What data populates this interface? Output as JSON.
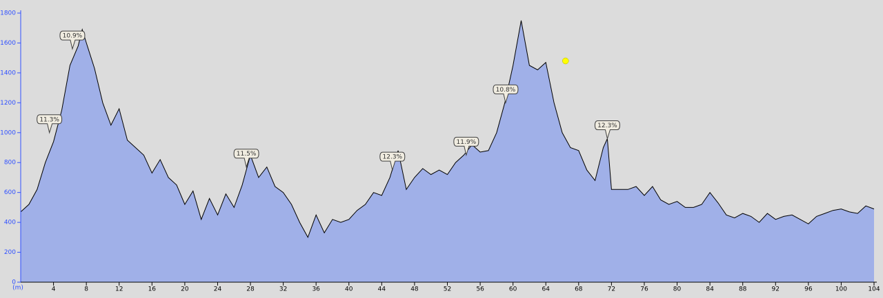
{
  "chart_data": {
    "type": "area",
    "x_label": "(m)",
    "x": [
      0,
      1,
      2,
      3,
      4,
      5,
      6,
      7,
      7.5,
      8,
      9,
      10,
      11,
      12,
      13,
      14,
      15,
      16,
      17,
      18,
      19,
      20,
      21,
      22,
      23,
      24,
      25,
      26,
      27,
      28,
      29,
      30,
      31,
      32,
      33,
      34,
      35,
      36,
      37,
      38,
      39,
      40,
      41,
      42,
      43,
      44,
      45,
      46,
      47,
      48,
      49,
      50,
      51,
      52,
      53,
      54,
      55,
      56,
      57,
      58,
      59,
      60,
      61,
      62,
      63,
      64,
      65,
      66,
      67,
      68,
      69,
      70,
      71,
      71.5,
      72,
      73,
      74,
      75,
      76,
      77,
      78,
      79,
      80,
      81,
      82,
      83,
      84,
      85,
      86,
      87,
      88,
      89,
      90,
      91,
      92,
      93,
      94,
      95,
      96,
      97,
      98,
      99,
      100,
      101,
      102,
      103,
      104
    ],
    "values": [
      470,
      520,
      620,
      800,
      940,
      1150,
      1450,
      1580,
      1690,
      1600,
      1430,
      1200,
      1050,
      1160,
      950,
      900,
      850,
      730,
      820,
      700,
      650,
      520,
      610,
      420,
      560,
      450,
      590,
      500,
      650,
      850,
      700,
      770,
      640,
      600,
      520,
      400,
      300,
      450,
      330,
      420,
      400,
      420,
      480,
      520,
      600,
      580,
      700,
      880,
      620,
      700,
      760,
      720,
      750,
      720,
      800,
      850,
      920,
      870,
      880,
      1000,
      1200,
      1450,
      1750,
      1450,
      1420,
      1470,
      1200,
      1000,
      900,
      880,
      750,
      680,
      900,
      960,
      620,
      620,
      620,
      640,
      580,
      640,
      550,
      520,
      540,
      500,
      500,
      520,
      600,
      530,
      450,
      430,
      460,
      440,
      400,
      460,
      420,
      440,
      450,
      420,
      390,
      440,
      460,
      480,
      490,
      470,
      460,
      510,
      490
    ],
    "color": "#a0b0e8",
    "line_color": "#000000",
    "xlim": [
      0,
      104
    ],
    "xticks": [
      4,
      8,
      12,
      16,
      20,
      24,
      28,
      32,
      36,
      40,
      44,
      48,
      52,
      56,
      60,
      64,
      68,
      72,
      76,
      80,
      84,
      88,
      92,
      96,
      100,
      104
    ],
    "ylim": [
      0,
      1800
    ],
    "yticks": [
      0,
      200,
      400,
      600,
      800,
      1000,
      1200,
      1400,
      1600,
      1800
    ],
    "annotations": [
      {
        "x": 3.5,
        "y": 1000,
        "text": "11.3%"
      },
      {
        "x": 6.3,
        "y": 1560,
        "text": "10.9%"
      },
      {
        "x": 27.5,
        "y": 770,
        "text": "11.5%"
      },
      {
        "x": 45.3,
        "y": 750,
        "text": "12.3%"
      },
      {
        "x": 54.3,
        "y": 850,
        "text": "11.9%"
      },
      {
        "x": 59.1,
        "y": 1200,
        "text": "10.8%"
      },
      {
        "x": 71.5,
        "y": 960,
        "text": "12.3%"
      }
    ],
    "marker": {
      "x": 66.4,
      "y": 1480,
      "color": "#ffff00"
    }
  }
}
